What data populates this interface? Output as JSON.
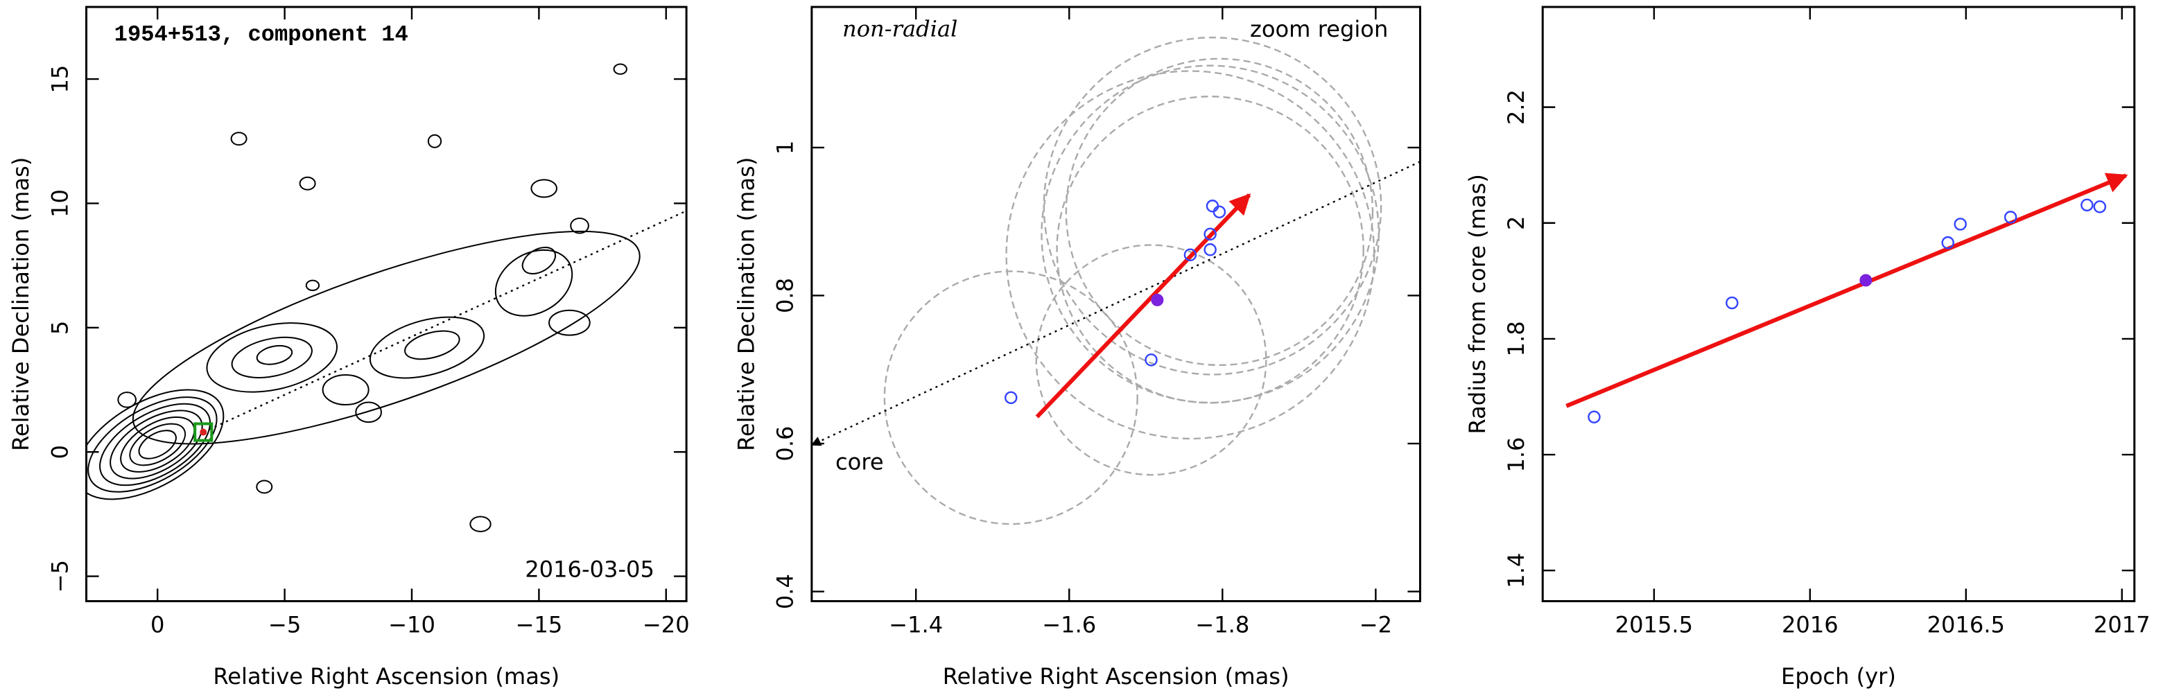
{
  "chart_data": [
    {
      "type": "contour",
      "title": "1954+513, component 14",
      "annotations": [
        "2016-03-05"
      ],
      "xlabel": "Relative Right Ascension (mas)",
      "ylabel": "Relative Declination (mas)",
      "xlim": [
        2.8,
        -20.8
      ],
      "ylim": [
        -6,
        17.9
      ],
      "xticks": [
        0,
        {
          "value": -5,
          "label": "−5"
        },
        {
          "value": -10,
          "label": "−10"
        },
        {
          "value": -15,
          "label": "−15"
        },
        {
          "value": -20,
          "label": "−20"
        }
      ],
      "yticks": [
        {
          "value": -5,
          "label": "−5"
        },
        0,
        5,
        10,
        15
      ],
      "contours": [
        {
          "cx": 0.3,
          "cy": 0.3,
          "rx": 3.2,
          "ry": 1.7,
          "angle": -30
        },
        {
          "cx": 0.2,
          "cy": 0.3,
          "rx": 2.8,
          "ry": 1.45,
          "angle": -30
        },
        {
          "cx": 0.1,
          "cy": 0.3,
          "rx": 2.4,
          "ry": 1.25,
          "angle": -30
        },
        {
          "cx": 0.05,
          "cy": 0.3,
          "rx": 2.0,
          "ry": 1.05,
          "angle": -30
        },
        {
          "cx": 0,
          "cy": 0.3,
          "rx": 1.6,
          "ry": 0.85,
          "angle": -30
        },
        {
          "cx": 0,
          "cy": 0.3,
          "rx": 1.2,
          "ry": 0.65,
          "angle": -30
        },
        {
          "cx": 0,
          "cy": 0.3,
          "rx": 0.8,
          "ry": 0.45,
          "angle": -30
        },
        {
          "cx": -9,
          "cy": 4.6,
          "rx": 10.5,
          "ry": 2.6,
          "angle": -19
        },
        {
          "cx": -4.5,
          "cy": 3.8,
          "rx": 2.6,
          "ry": 1.3,
          "angle": -12
        },
        {
          "cx": -4.5,
          "cy": 3.8,
          "rx": 1.6,
          "ry": 0.75,
          "angle": -12
        },
        {
          "cx": -4.6,
          "cy": 3.9,
          "rx": 0.7,
          "ry": 0.35,
          "angle": -12
        },
        {
          "cx": -10.6,
          "cy": 4.2,
          "rx": 2.3,
          "ry": 1.1,
          "angle": -15
        },
        {
          "cx": -10.8,
          "cy": 4.3,
          "rx": 1.1,
          "ry": 0.5,
          "angle": -15
        },
        {
          "cx": -14.8,
          "cy": 6.8,
          "rx": 1.6,
          "ry": 1.2,
          "angle": -30
        },
        {
          "cx": -15,
          "cy": 7.7,
          "rx": 0.7,
          "ry": 0.45,
          "angle": -30
        },
        {
          "cx": -16.2,
          "cy": 5.2,
          "rx": 0.8,
          "ry": 0.5,
          "angle": 0
        },
        {
          "cx": -15.2,
          "cy": 10.6,
          "rx": 0.5,
          "ry": 0.35,
          "angle": 0
        },
        {
          "cx": -16.6,
          "cy": 9.1,
          "rx": 0.35,
          "ry": 0.3,
          "angle": 0
        },
        {
          "cx": -7.4,
          "cy": 2.5,
          "rx": 0.9,
          "ry": 0.6,
          "angle": 0
        },
        {
          "cx": -8.3,
          "cy": 1.6,
          "rx": 0.5,
          "ry": 0.4,
          "angle": 0
        },
        {
          "cx": 1.2,
          "cy": 2.1,
          "rx": 0.35,
          "ry": 0.3,
          "angle": 0
        },
        {
          "cx": -3.2,
          "cy": 12.6,
          "rx": 0.3,
          "ry": 0.25,
          "angle": 0
        },
        {
          "cx": -5.9,
          "cy": 10.8,
          "rx": 0.3,
          "ry": 0.25,
          "angle": 0
        },
        {
          "cx": -6.1,
          "cy": 6.7,
          "rx": 0.25,
          "ry": 0.2,
          "angle": 0
        },
        {
          "cx": -10.9,
          "cy": 12.5,
          "rx": 0.25,
          "ry": 0.25,
          "angle": 0
        },
        {
          "cx": -4.2,
          "cy": -1.4,
          "rx": 0.3,
          "ry": 0.25,
          "angle": 0
        },
        {
          "cx": -12.7,
          "cy": -2.9,
          "rx": 0.4,
          "ry": 0.3,
          "angle": 0
        },
        {
          "cx": -18.2,
          "cy": 15.4,
          "rx": 0.25,
          "ry": 0.2,
          "angle": 0
        }
      ],
      "trend": {
        "x": [
          -1.8,
          -20.8
        ],
        "y": [
          0.8,
          9.7
        ]
      },
      "marker": {
        "x": -1.8,
        "y": 0.8
      }
    },
    {
      "type": "scatter",
      "annotations": [
        "non-radial",
        "zoom region",
        "core"
      ],
      "xlabel": "Relative Right Ascension (mas)",
      "ylabel": "Relative Declination (mas)",
      "xlim": [
        -1.264,
        -2.058
      ],
      "ylim": [
        0.387,
        1.19
      ],
      "xticks": [
        {
          "value": -1.4,
          "label": "−1.4"
        },
        {
          "value": -1.6,
          "label": "−1.6"
        },
        {
          "value": -1.8,
          "label": "−1.8"
        },
        {
          "value": -2,
          "label": "−2"
        }
      ],
      "yticks": [
        0.4,
        0.6,
        0.8,
        1
      ],
      "x": [
        -1.524,
        -1.707,
        -1.758,
        -1.784,
        -1.784,
        -1.787,
        -1.796
      ],
      "y": [
        0.662,
        0.713,
        0.855,
        0.862,
        0.883,
        0.921,
        0.913
      ],
      "errors": [
        0.165,
        0.15,
        0.24,
        0.2,
        0.22,
        0.22,
        0.2
      ],
      "highlight": {
        "x": -1.715,
        "y": 0.794
      },
      "arrow": {
        "x": [
          -1.558,
          -1.835
        ],
        "y": [
          0.636,
          0.936
        ]
      },
      "trend": {
        "x": [
          -2.058,
          -1.264
        ],
        "y": [
          0.981,
          0.598
        ]
      },
      "color": "#3344ff",
      "highlight_color": "#7a22dd",
      "arrow_color": "#ee1111"
    },
    {
      "type": "scatter",
      "xlabel": "Epoch (yr)",
      "ylabel": "Radius from core (mas)",
      "xlim": [
        2015.143,
        2017.04
      ],
      "ylim": [
        1.347,
        2.373
      ],
      "xticks": [
        2015.5,
        2016,
        2016.5,
        2017
      ],
      "yticks": [
        1.4,
        1.6,
        1.8,
        2,
        2.2
      ],
      "x": [
        2015.308,
        2015.75,
        2016.442,
        2016.482,
        2016.643,
        2016.888,
        2016.929
      ],
      "y": [
        1.665,
        1.862,
        1.966,
        1.998,
        2.01,
        2.031,
        2.028
      ],
      "highlight": {
        "x": 2016.179,
        "y": 1.901
      },
      "arrow": {
        "x": [
          2015.219,
          2017.013
        ],
        "y": [
          1.684,
          2.082
        ]
      },
      "color": "#3344ff",
      "highlight_color": "#7a22dd",
      "arrow_color": "#ee1111"
    }
  ]
}
